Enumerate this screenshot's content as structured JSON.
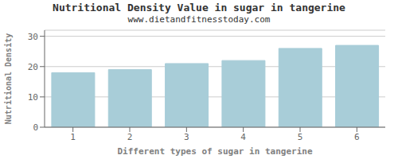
{
  "chart_data": {
    "type": "bar",
    "title": "Nutritional Density Value in sugar in tangerine",
    "subtitle": "www.dietandfitnesstoday.com",
    "xlabel": "Different types of sugar in tangerine",
    "ylabel": "Nutritional Density",
    "categories": [
      1,
      2,
      3,
      4,
      5,
      6
    ],
    "values": [
      18,
      19,
      21,
      22,
      26,
      27
    ],
    "color": "#a8cdd8",
    "ylim": [
      0,
      32
    ],
    "yticks": [
      0,
      10,
      20,
      30
    ],
    "grid": true
  }
}
